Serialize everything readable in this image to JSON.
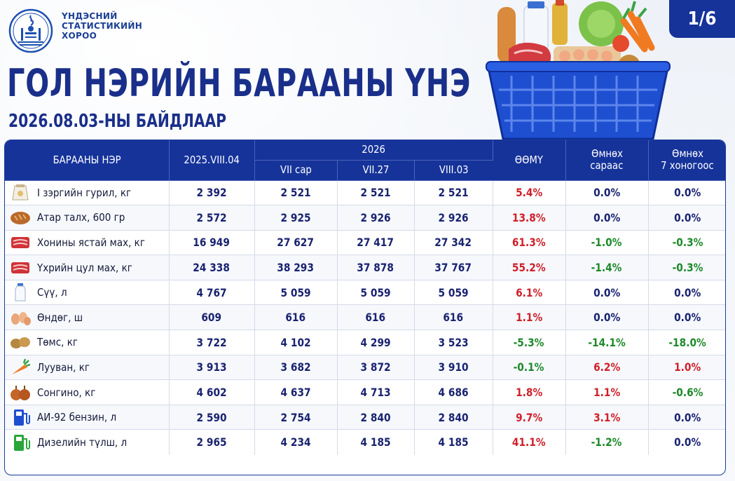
{
  "header": {
    "org_line1": "ҮНДЭСНИЙ",
    "org_line2": "СТАТИСТИКИЙН",
    "org_line3": "ХОРОО",
    "page_indicator": "1/6",
    "title": "ГОЛ НЭРИЙН БАРААНЫ ҮНЭ",
    "subtitle": "2026.08.03-НЫ БАЙДЛААР"
  },
  "table": {
    "headers": {
      "name": "БАРААНЫ НЭР",
      "prev_year": "2025.VIII.04",
      "year_group": "2026",
      "col_month": "VII сар",
      "col_week": "VII.27",
      "col_current": "VIII.03",
      "col_yoy": "ӨӨМҮ",
      "col_mom_line1": "Өмнөх",
      "col_mom_line2": "сараас",
      "col_wow_line1": "Өмнөх",
      "col_wow_line2": "7 хоногоос"
    },
    "rows": [
      {
        "icon": "flour-sack-icon",
        "name": "I зэргийн гурил, кг",
        "prev": "2 392",
        "m": "2 521",
        "w": "2 521",
        "c": "2 521",
        "yoy": "5.4%",
        "yoy_c": "red",
        "mom": "0.0%",
        "mom_c": "",
        "wow": "0.0%",
        "wow_c": ""
      },
      {
        "icon": "bread-icon",
        "name": "Атар талх, 600 гр",
        "prev": "2 572",
        "m": "2 925",
        "w": "2 926",
        "c": "2 926",
        "yoy": "13.8%",
        "yoy_c": "red",
        "mom": "0.0%",
        "mom_c": "",
        "wow": "0.0%",
        "wow_c": ""
      },
      {
        "icon": "meat-icon",
        "name": "Хонины ястай мах, кг",
        "prev": "16 949",
        "m": "27 627",
        "w": "27 417",
        "c": "27 342",
        "yoy": "61.3%",
        "yoy_c": "red",
        "mom": "-1.0%",
        "mom_c": "green",
        "wow": "-0.3%",
        "wow_c": "green"
      },
      {
        "icon": "meat-icon",
        "name": "Үхрийн цул мах, кг",
        "prev": "24 338",
        "m": "38 293",
        "w": "37 878",
        "c": "37 767",
        "yoy": "55.2%",
        "yoy_c": "red",
        "mom": "-1.4%",
        "mom_c": "green",
        "wow": "-0.3%",
        "wow_c": "green"
      },
      {
        "icon": "milk-bottle-icon",
        "name": "Сүү, л",
        "prev": "4 767",
        "m": "5 059",
        "w": "5 059",
        "c": "5 059",
        "yoy": "6.1%",
        "yoy_c": "red",
        "mom": "0.0%",
        "mom_c": "",
        "wow": "0.0%",
        "wow_c": ""
      },
      {
        "icon": "eggs-icon",
        "name": "Өндөг, ш",
        "prev": "609",
        "m": "616",
        "w": "616",
        "c": "616",
        "yoy": "1.1%",
        "yoy_c": "red",
        "mom": "0.0%",
        "mom_c": "",
        "wow": "0.0%",
        "wow_c": ""
      },
      {
        "icon": "potato-icon",
        "name": "Төмс, кг",
        "prev": "3 722",
        "m": "4 102",
        "w": "4 299",
        "c": "3 523",
        "yoy": "-5.3%",
        "yoy_c": "green",
        "mom": "-14.1%",
        "mom_c": "green",
        "wow": "-18.0%",
        "wow_c": "green"
      },
      {
        "icon": "carrot-icon",
        "name": "Лууван, кг",
        "prev": "3 913",
        "m": "3 682",
        "w": "3 872",
        "c": "3 910",
        "yoy": "-0.1%",
        "yoy_c": "green",
        "mom": "6.2%",
        "mom_c": "red",
        "wow": "1.0%",
        "wow_c": "red"
      },
      {
        "icon": "onion-icon",
        "name": "Сонгино, кг",
        "prev": "4 602",
        "m": "4 637",
        "w": "4 713",
        "c": "4 686",
        "yoy": "1.8%",
        "yoy_c": "red",
        "mom": "1.1%",
        "mom_c": "red",
        "wow": "-0.6%",
        "wow_c": "green"
      },
      {
        "icon": "fuel-pump-blue-icon",
        "name": "АИ-92 бензин, л",
        "prev": "2 590",
        "m": "2 754",
        "w": "2 840",
        "c": "2 840",
        "yoy": "9.7%",
        "yoy_c": "red",
        "mom": "3.1%",
        "mom_c": "red",
        "wow": "0.0%",
        "wow_c": ""
      },
      {
        "icon": "fuel-pump-green-icon",
        "name": "Дизелийн түлш, л",
        "prev": "2 965",
        "m": "4 234",
        "w": "4 185",
        "c": "4 185",
        "yoy": "41.1%",
        "yoy_c": "red",
        "mom": "-1.2%",
        "mom_c": "green",
        "wow": "0.0%",
        "wow_c": ""
      }
    ]
  },
  "colors": {
    "navy": "#16339a",
    "title": "#1a2f8a",
    "up_red": "#d0212a",
    "down_green": "#1d8a2a"
  }
}
